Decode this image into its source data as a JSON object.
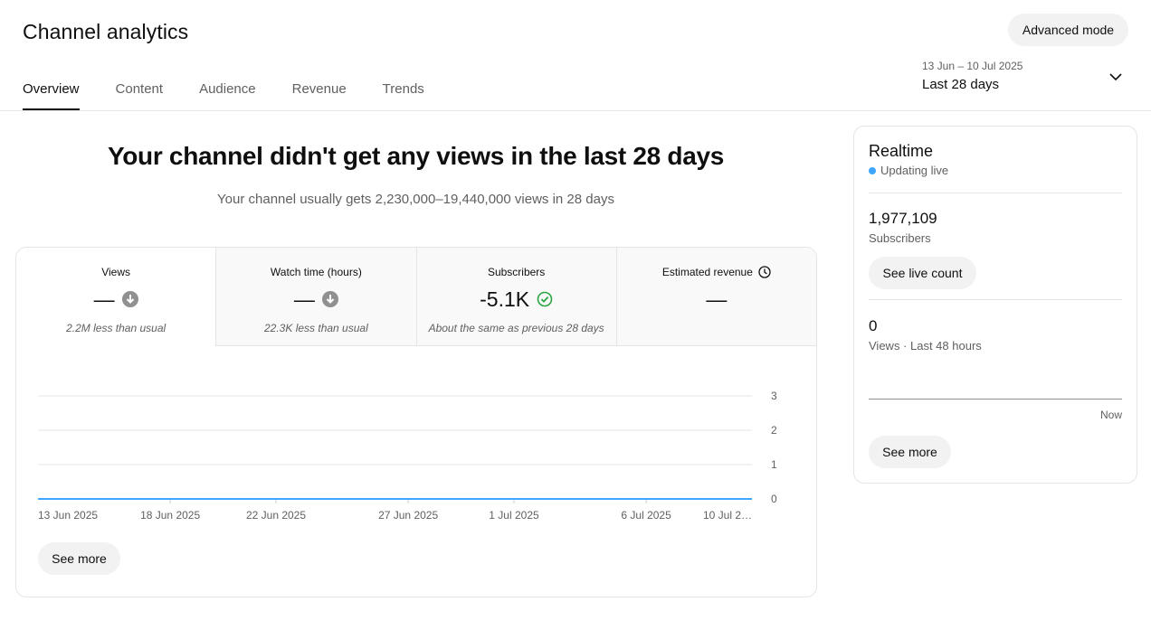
{
  "header": {
    "title": "Channel analytics",
    "advanced_mode_label": "Advanced mode"
  },
  "tabs": [
    {
      "label": "Overview",
      "active": true
    },
    {
      "label": "Content",
      "active": false
    },
    {
      "label": "Audience",
      "active": false
    },
    {
      "label": "Revenue",
      "active": false
    },
    {
      "label": "Trends",
      "active": false
    }
  ],
  "date_range": {
    "range": "13 Jun – 10 Jul 2025",
    "label": "Last 28 days",
    "icon": "chevron-down-icon"
  },
  "summary": {
    "headline": "Your channel didn't get any views in the last 28 days",
    "subtext": "Your channel usually gets 2,230,000–19,440,000 views in 28 days"
  },
  "metrics": [
    {
      "label": "Views",
      "value": "—",
      "note": "2.2M less than usual",
      "status_icon": "arrow-down-circle-icon"
    },
    {
      "label": "Watch time (hours)",
      "value": "—",
      "note": "22.3K less than usual",
      "status_icon": "arrow-down-circle-icon"
    },
    {
      "label": "Subscribers",
      "value": "-5.1K",
      "note": "About the same as previous 28 days",
      "status_icon": "check-circle-icon"
    },
    {
      "label": "Estimated revenue",
      "value": "—",
      "note": "",
      "label_icon": "clock-icon"
    }
  ],
  "chart_data": {
    "type": "line",
    "x_tick_labels": [
      "13 Jun 2025",
      "18 Jun 2025",
      "22 Jun 2025",
      "27 Jun 2025",
      "1 Jul 2025",
      "6 Jul 2025",
      "10 Jul 2…"
    ],
    "y_tick_labels": [
      "3",
      "2",
      "1",
      "0"
    ],
    "ylim": [
      0,
      3
    ],
    "series": [
      {
        "x": [
          "13 Jun 2025",
          "14 Jun 2025",
          "15 Jun 2025",
          "16 Jun 2025",
          "17 Jun 2025",
          "18 Jun 2025",
          "19 Jun 2025",
          "20 Jun 2025",
          "21 Jun 2025",
          "22 Jun 2025",
          "23 Jun 2025",
          "24 Jun 2025",
          "25 Jun 2025",
          "26 Jun 2025",
          "27 Jun 2025",
          "28 Jun 2025",
          "29 Jun 2025",
          "30 Jun 2025",
          "1 Jul 2025",
          "2 Jul 2025",
          "3 Jul 2025",
          "4 Jul 2025",
          "5 Jul 2025",
          "6 Jul 2025",
          "7 Jul 2025",
          "8 Jul 2025",
          "9 Jul 2025",
          "10 Jul 2025"
        ],
        "values": [
          0,
          0,
          0,
          0,
          0,
          0,
          0,
          0,
          0,
          0,
          0,
          0,
          0,
          0,
          0,
          0,
          0,
          0,
          0,
          0,
          0,
          0,
          0,
          0,
          0,
          0,
          0,
          0
        ],
        "color": "#3ea6ff"
      }
    ],
    "grid": true,
    "y_axis_side": "right"
  },
  "chart_see_more_label": "See more",
  "realtime": {
    "title": "Realtime",
    "live_label": "Updating live",
    "subscribers_value": "1,977,109",
    "subscribers_label": "Subscribers",
    "live_count_label": "See live count",
    "views_value": "0",
    "views_label": "Views · Last 48 hours",
    "now_label": "Now",
    "see_more_label": "See more",
    "live_color": "#3ea6ff"
  }
}
